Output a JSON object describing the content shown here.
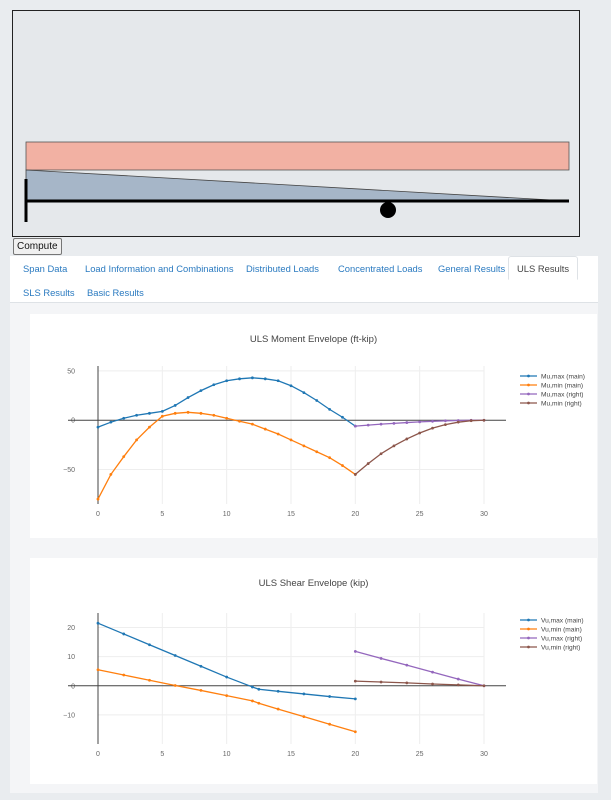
{
  "toolbar": {
    "compute_label": "Compute"
  },
  "tabs": [
    {
      "label": "Span Data"
    },
    {
      "label": "Load Information and Combinations"
    },
    {
      "label": "Distributed Loads"
    },
    {
      "label": "Concentrated Loads"
    },
    {
      "label": "General Results"
    },
    {
      "label": "ULS Results",
      "active": true
    },
    {
      "label": "SLS Results"
    },
    {
      "label": "Basic Results"
    }
  ],
  "colors": {
    "series_blue": "#1f77b4",
    "series_orange": "#ff7f0e",
    "series_purple": "#9467bd",
    "series_brown": "#8c564b",
    "beam_load_fill": "#f2b1a3",
    "beam_triangle_fill": "#a6b6c8"
  },
  "chart_data": [
    {
      "type": "line",
      "title": "ULS Moment Envelope (ft-kip)",
      "xlabel": "",
      "ylabel": "",
      "xlim": [
        0,
        30
      ],
      "ylim": [
        -85,
        55
      ],
      "xticks": [
        "0",
        "5",
        "10",
        "15",
        "20",
        "25",
        "30"
      ],
      "yticks": [
        {
          "value": 50,
          "label": "50"
        },
        {
          "value": 0,
          "label": "0"
        },
        {
          "value": -50,
          "label": "−50"
        }
      ],
      "legend_position": "right",
      "series": [
        {
          "name": "Mu,max (main)",
          "color": "#1f77b4",
          "x": [
            0,
            1,
            2,
            3,
            4,
            5,
            6,
            7,
            8,
            9,
            10,
            11,
            12,
            13,
            14,
            15,
            16,
            17,
            18,
            19,
            20
          ],
          "y": [
            -7,
            -2,
            2,
            5,
            7,
            9,
            15,
            23,
            30,
            36,
            40,
            42,
            43,
            42,
            40,
            35,
            28,
            20,
            11,
            3,
            -6
          ]
        },
        {
          "name": "Mu,min (main)",
          "color": "#ff7f0e",
          "x": [
            0,
            1,
            2,
            3,
            4,
            5,
            6,
            7,
            8,
            9,
            10,
            11,
            12,
            13,
            14,
            15,
            16,
            17,
            18,
            19,
            20
          ],
          "y": [
            -80,
            -55,
            -37,
            -20,
            -7,
            4,
            7,
            8,
            7,
            5,
            2,
            -1,
            -4,
            -9,
            -14,
            -20,
            -26,
            -32,
            -38,
            -46,
            -55
          ]
        },
        {
          "name": "Mu,max (right)",
          "color": "#9467bd",
          "x": [
            20,
            21,
            22,
            23,
            24,
            25,
            26,
            27,
            28,
            29,
            30
          ],
          "y": [
            -6,
            -5,
            -4,
            -3.2,
            -2.4,
            -1.7,
            -1.1,
            -0.6,
            -0.3,
            -0.1,
            0
          ]
        },
        {
          "name": "Mu,min (right)",
          "color": "#8c564b",
          "x": [
            20,
            21,
            22,
            23,
            24,
            25,
            26,
            27,
            28,
            29,
            30
          ],
          "y": [
            -55,
            -44,
            -34,
            -26,
            -19,
            -13,
            -8,
            -4.5,
            -2,
            -0.5,
            0
          ]
        }
      ]
    },
    {
      "type": "line",
      "title": "ULS Shear Envelope (kip)",
      "xlabel": "",
      "ylabel": "",
      "xlim": [
        0,
        30
      ],
      "ylim": [
        -20,
        25
      ],
      "xticks": [
        "0",
        "5",
        "10",
        "15",
        "20",
        "25",
        "30"
      ],
      "yticks": [
        {
          "value": 20,
          "label": "20"
        },
        {
          "value": 10,
          "label": "10"
        },
        {
          "value": 0,
          "label": "0"
        },
        {
          "value": -10,
          "label": "−10"
        }
      ],
      "legend_position": "right",
      "series": [
        {
          "name": "Vu,max (main)",
          "color": "#1f77b4",
          "x": [
            0,
            2,
            4,
            6,
            8,
            10,
            12,
            12.5,
            14,
            16,
            18,
            20
          ],
          "y": [
            21.5,
            17.8,
            14.1,
            10.4,
            6.7,
            3.0,
            -0.4,
            -1.2,
            -1.9,
            -2.8,
            -3.7,
            -4.5
          ]
        },
        {
          "name": "Vu,min (main)",
          "color": "#ff7f0e",
          "x": [
            0,
            2,
            4,
            6,
            8,
            10,
            12,
            12.5,
            14,
            16,
            18,
            20
          ],
          "y": [
            5.5,
            3.7,
            1.9,
            0.1,
            -1.6,
            -3.4,
            -5.2,
            -6.0,
            -8.0,
            -10.6,
            -13.2,
            -15.8
          ]
        },
        {
          "name": "Vu,max (right)",
          "color": "#9467bd",
          "x": [
            20,
            22,
            24,
            26,
            28,
            30
          ],
          "y": [
            11.8,
            9.4,
            7.1,
            4.7,
            2.3,
            0
          ]
        },
        {
          "name": "Vu,min (right)",
          "color": "#8c564b",
          "x": [
            20,
            22,
            24,
            26,
            28,
            30
          ],
          "y": [
            1.6,
            1.3,
            1.0,
            0.6,
            0.3,
            0
          ]
        }
      ]
    }
  ]
}
